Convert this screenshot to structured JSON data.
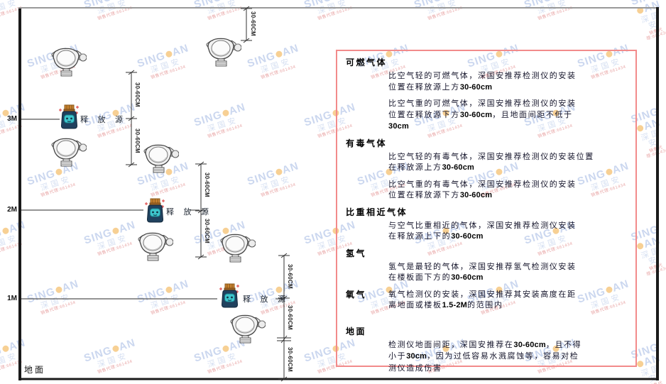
{
  "watermark": {
    "brand_left": "SING",
    "brand_right": "AN",
    "cjk": "深国安",
    "red_line": "销售代理:661434"
  },
  "diagram": {
    "axis_labels": {
      "m3": "3M",
      "m2": "2M",
      "m1": "1M"
    },
    "ground_label": "地面",
    "source_label": "释 放 源",
    "dim_label": "30-60CM",
    "colors": {
      "line": "#444444",
      "frame": "#1a1a1a",
      "source_body": "#20415e",
      "source_face": "#3ec6cd",
      "source_cap": "#c8822e",
      "spark": "#e05050"
    }
  },
  "panel": {
    "border_color": "#f28b8b",
    "sections": [
      {
        "heading": "可燃气体",
        "inline": false,
        "paragraphs": [
          [
            "比空气轻的可燃气体，深国安推荐检测仪的安装",
            "位置在释放源上方30-60cm"
          ],
          [
            "比空气重的可燃气体，深国安推荐检测仪的安装",
            "位置在释放源下方30-60cm，且地面间距不低于",
            "30cm"
          ]
        ]
      },
      {
        "heading": "有毒气体",
        "inline": false,
        "paragraphs": [
          [
            "比空气轻的有毒气体，深国安推荐检测仪的安装位置",
            "在释放源上方30-60cm"
          ],
          [
            "比空气重的有毒气体，深国安推荐检测仪的安装",
            "位置在释放源下方30-60cm"
          ]
        ]
      },
      {
        "heading": "比重相近气体",
        "inline": false,
        "paragraphs": [
          [
            "与空气比重相近的气体，深国安推荐检测仪安装",
            "在释放源上下的30-60cm"
          ]
        ]
      },
      {
        "heading": "氢气",
        "inline": false,
        "paragraphs": [
          [
            "氢气是最轻的气体，深国安推荐氢气检测仪安装",
            "在楼板面下方的30-60cm"
          ]
        ]
      },
      {
        "heading": "氧气",
        "inline": true,
        "paragraphs": [
          [
            "氧气检测仪的安装，深国安推荐其安装高度在距",
            "离地面或楼板1.5-2M的范围内"
          ]
        ]
      },
      {
        "heading": "地面",
        "inline": false,
        "paragraphs": [
          [
            "检测仪地面间距，深国安推荐在30-60cm，且不得",
            "小于30cm，因为过低容易水溅腐蚀等，容易对检",
            "测仪造成伤害"
          ]
        ]
      }
    ]
  }
}
